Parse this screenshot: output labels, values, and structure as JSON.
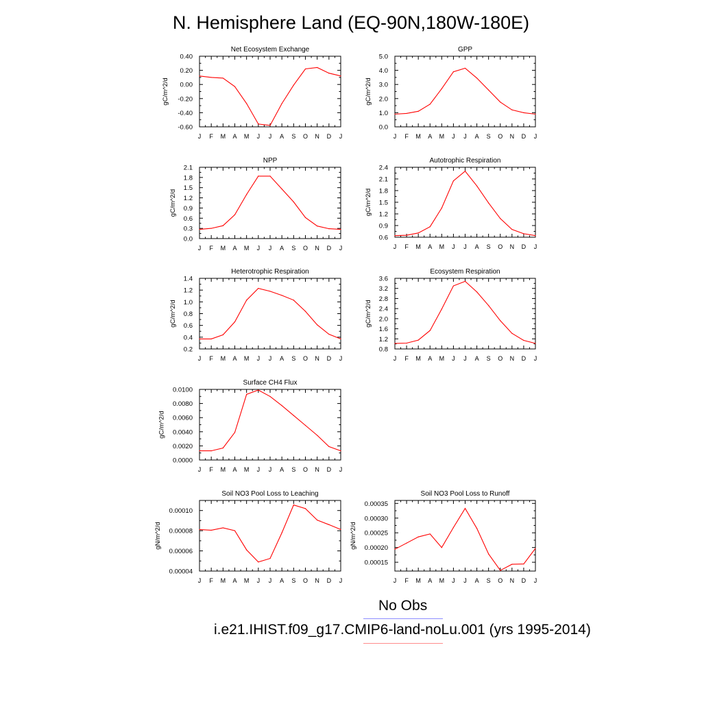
{
  "title": "N. Hemisphere Land (EQ-90N,180W-180E)",
  "month_labels": [
    "J",
    "F",
    "M",
    "A",
    "M",
    "J",
    "J",
    "A",
    "S",
    "O",
    "N",
    "D",
    "J"
  ],
  "colors": {
    "series": "#ff0000",
    "obs_line": "#8c8cff",
    "model_line": "#ff8c8c",
    "axis": "#000000"
  },
  "legend": {
    "obs_label": "No Obs",
    "model_label": "i.e21.IHIST.f09_g17.CMIP6-land-noLu.001 (yrs 1995-2014)"
  },
  "chart_data": [
    {
      "type": "line",
      "title": "Net Ecosystem Exchange",
      "ylabel": "gC/m^2/d",
      "ylim": [
        -0.6,
        0.4
      ],
      "yticks": [
        "0.40",
        "0.20",
        "0.00",
        "-0.20",
        "-0.40",
        "-0.60"
      ],
      "ytick_values": [
        0.4,
        0.2,
        0.0,
        -0.2,
        -0.4,
        -0.6
      ],
      "x": [
        "J",
        "F",
        "M",
        "A",
        "M",
        "J",
        "J",
        "A",
        "S",
        "O",
        "N",
        "D",
        "J"
      ],
      "values": [
        0.12,
        0.1,
        0.09,
        -0.03,
        -0.27,
        -0.56,
        -0.58,
        -0.27,
        -0.01,
        0.22,
        0.24,
        0.16,
        0.12
      ]
    },
    {
      "type": "line",
      "title": "GPP",
      "ylabel": "gC/m^2/d",
      "ylim": [
        0.0,
        5.0
      ],
      "yticks": [
        "5.0",
        "4.0",
        "3.0",
        "2.0",
        "1.0",
        "0.0"
      ],
      "ytick_values": [
        5.0,
        4.0,
        3.0,
        2.0,
        1.0,
        0.0
      ],
      "x": [
        "J",
        "F",
        "M",
        "A",
        "M",
        "J",
        "J",
        "A",
        "S",
        "O",
        "N",
        "D",
        "J"
      ],
      "values": [
        0.9,
        0.95,
        1.1,
        1.6,
        2.7,
        3.9,
        4.15,
        3.45,
        2.6,
        1.75,
        1.2,
        1.0,
        0.9
      ]
    },
    {
      "type": "line",
      "title": "NPP",
      "ylabel": "gC/m^2/d",
      "ylim": [
        0.0,
        2.1
      ],
      "yticks": [
        "2.1",
        "1.8",
        "1.5",
        "1.2",
        "0.9",
        "0.6",
        "0.3",
        "0.0"
      ],
      "ytick_values": [
        2.1,
        1.8,
        1.5,
        1.2,
        0.9,
        0.6,
        0.3,
        0.0
      ],
      "x": [
        "J",
        "F",
        "M",
        "A",
        "M",
        "J",
        "J",
        "A",
        "S",
        "O",
        "N",
        "D",
        "J"
      ],
      "values": [
        0.27,
        0.3,
        0.38,
        0.7,
        1.3,
        1.84,
        1.84,
        1.46,
        1.08,
        0.62,
        0.37,
        0.29,
        0.27
      ]
    },
    {
      "type": "line",
      "title": "Autotrophic Respiration",
      "ylabel": "gC/m^2/d",
      "ylim": [
        0.6,
        2.4
      ],
      "yticks": [
        "2.4",
        "2.1",
        "1.8",
        "1.5",
        "1.2",
        "0.9",
        "0.6"
      ],
      "ytick_values": [
        2.4,
        2.1,
        1.8,
        1.5,
        1.2,
        0.9,
        0.6
      ],
      "x": [
        "J",
        "F",
        "M",
        "A",
        "M",
        "J",
        "J",
        "A",
        "S",
        "O",
        "N",
        "D",
        "J"
      ],
      "values": [
        0.64,
        0.65,
        0.71,
        0.87,
        1.35,
        2.05,
        2.3,
        1.92,
        1.48,
        1.08,
        0.8,
        0.69,
        0.64
      ]
    },
    {
      "type": "line",
      "title": "Heterotrophic Respiration",
      "ylabel": "gC/m^2/d",
      "ylim": [
        0.2,
        1.4
      ],
      "yticks": [
        "1.4",
        "1.2",
        "1.0",
        "0.8",
        "0.6",
        "0.4",
        "0.2"
      ],
      "ytick_values": [
        1.4,
        1.2,
        1.0,
        0.8,
        0.6,
        0.4,
        0.2
      ],
      "x": [
        "J",
        "F",
        "M",
        "A",
        "M",
        "J",
        "J",
        "A",
        "S",
        "O",
        "N",
        "D",
        "J"
      ],
      "values": [
        0.37,
        0.37,
        0.44,
        0.66,
        1.03,
        1.23,
        1.18,
        1.11,
        1.03,
        0.84,
        0.61,
        0.45,
        0.37
      ]
    },
    {
      "type": "line",
      "title": "Ecosystem Respiration",
      "ylabel": "gC/m^2/d",
      "ylim": [
        0.8,
        3.6
      ],
      "yticks": [
        "3.6",
        "3.2",
        "2.8",
        "2.4",
        "2.0",
        "1.6",
        "1.2",
        "0.8"
      ],
      "ytick_values": [
        3.6,
        3.2,
        2.8,
        2.4,
        2.0,
        1.6,
        1.2,
        0.8
      ],
      "x": [
        "J",
        "F",
        "M",
        "A",
        "M",
        "J",
        "J",
        "A",
        "S",
        "O",
        "N",
        "D",
        "J"
      ],
      "values": [
        1.02,
        1.03,
        1.15,
        1.53,
        2.38,
        3.3,
        3.48,
        3.06,
        2.52,
        1.92,
        1.42,
        1.14,
        1.02
      ]
    },
    {
      "type": "line",
      "title": "Surface CH4 Flux",
      "ylabel": "gC/m^2/d",
      "ylim": [
        0.0,
        0.01
      ],
      "yticks": [
        "0.0100",
        "0.0080",
        "0.0060",
        "0.0040",
        "0.0020",
        "0.0000"
      ],
      "ytick_values": [
        0.01,
        0.008,
        0.006,
        0.004,
        0.002,
        0.0
      ],
      "x": [
        "J",
        "F",
        "M",
        "A",
        "M",
        "J",
        "J",
        "A",
        "S",
        "O",
        "N",
        "D",
        "J"
      ],
      "values": [
        0.0013,
        0.0013,
        0.0017,
        0.0039,
        0.0093,
        0.0099,
        0.009,
        0.0077,
        0.0063,
        0.0049,
        0.0035,
        0.0019,
        0.0013
      ]
    },
    null,
    {
      "type": "line",
      "title": "Soil NO3 Pool Loss to Leaching",
      "ylabel": "gN/m^2/d",
      "ylim": [
        4e-05,
        0.00011
      ],
      "yticks": [
        "0.00010",
        "0.00008",
        "0.00006",
        "0.00004"
      ],
      "ytick_values": [
        0.0001,
        8e-05,
        6e-05,
        4e-05
      ],
      "x": [
        "J",
        "F",
        "M",
        "A",
        "M",
        "J",
        "J",
        "A",
        "S",
        "O",
        "N",
        "D",
        "J"
      ],
      "values": [
        8.12e-05,
        8.05e-05,
        8.28e-05,
        8e-05,
        6.1e-05,
        4.9e-05,
        5.25e-05,
        7.8e-05,
        0.0001055,
        0.000102,
        9.05e-05,
        8.6e-05,
        8.12e-05
      ]
    },
    {
      "type": "line",
      "title": "Soil NO3 Pool Loss to Runoff",
      "ylabel": "gN/m^2/d",
      "ylim": [
        0.00012,
        0.00036
      ],
      "yticks": [
        "0.00035",
        "0.00030",
        "0.00025",
        "0.00020",
        "0.00015"
      ],
      "ytick_values": [
        0.00035,
        0.0003,
        0.00025,
        0.0002,
        0.00015
      ],
      "x": [
        "J",
        "F",
        "M",
        "A",
        "M",
        "J",
        "J",
        "A",
        "S",
        "O",
        "N",
        "D",
        "J"
      ],
      "values": [
        0.000194,
        0.000215,
        0.000236,
        0.000246,
        0.0002,
        0.000268,
        0.000333,
        0.000265,
        0.000178,
        0.000122,
        0.000143,
        0.000144,
        0.000197
      ]
    }
  ]
}
